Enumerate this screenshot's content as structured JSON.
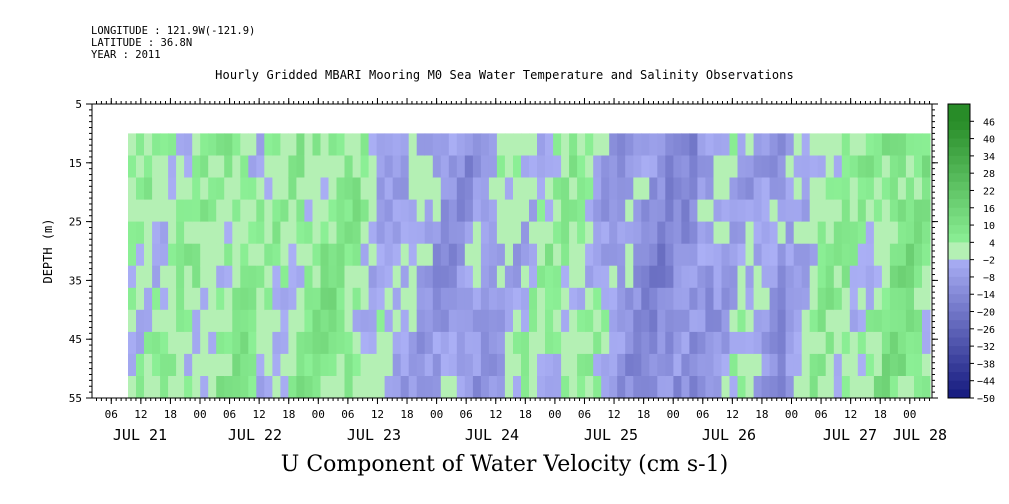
{
  "header": {
    "longitude": "LONGITUDE : 121.9W(-121.9)",
    "latitude": "LATITUDE : 36.8N",
    "year": "YEAR : 2011",
    "title": "Hourly Gridded MBARI Mooring M0 Sea Water Temperature and Salinity Observations"
  },
  "chart_data": {
    "type": "heatmap",
    "title": "Hourly Gridded MBARI Mooring M0 Sea Water Temperature and Salinity Observations",
    "xlabel": "U Component of Water Velocity (cm s-1)",
    "ylabel": "DEPTH (m)",
    "y_ticks": [
      5,
      15,
      25,
      35,
      45,
      55
    ],
    "y_range": [
      5,
      55
    ],
    "y_inverted": true,
    "data_depth_range": [
      10,
      55
    ],
    "x_hour_ticks": [
      "06",
      "12",
      "18",
      "00",
      "06",
      "12",
      "18",
      "00",
      "06",
      "12",
      "18",
      "00",
      "06",
      "12",
      "18",
      "00",
      "06",
      "12",
      "18",
      "00",
      "06",
      "12",
      "18",
      "00",
      "06",
      "12",
      "18",
      "00",
      "06",
      "12",
      "18",
      "00"
    ],
    "x_day_labels": [
      "JUL 21",
      "JUL 22",
      "JUL 23",
      "JUL 24",
      "JUL 25",
      "JUL 26",
      "JUL 27",
      "JUL 28"
    ],
    "colorbar_levels": [
      46,
      40,
      34,
      28,
      22,
      16,
      10,
      4,
      -2,
      -8,
      -14,
      -20,
      -26,
      -32,
      -38,
      -44,
      -50
    ],
    "colorbar_range": [
      -50,
      52
    ],
    "profile_sketch": [
      {
        "day_frac": 0.0,
        "u": 2
      },
      {
        "day_frac": 0.3,
        "u": 6
      },
      {
        "day_frac": 0.6,
        "u": 1
      },
      {
        "day_frac": 1.0,
        "u": 5
      },
      {
        "day_frac": 1.3,
        "u": 8
      },
      {
        "day_frac": 1.6,
        "u": -3
      },
      {
        "day_frac": 2.0,
        "u": -6
      },
      {
        "day_frac": 2.3,
        "u": -10
      },
      {
        "day_frac": 2.6,
        "u": -4
      },
      {
        "day_frac": 3.0,
        "u": 2
      },
      {
        "day_frac": 3.3,
        "u": 3
      },
      {
        "day_frac": 3.6,
        "u": -8
      },
      {
        "day_frac": 4.0,
        "u": -14
      },
      {
        "day_frac": 4.3,
        "u": -10
      },
      {
        "day_frac": 4.6,
        "u": -2
      },
      {
        "day_frac": 5.0,
        "u": -10
      },
      {
        "day_frac": 5.3,
        "u": 4
      },
      {
        "day_frac": 5.6,
        "u": 2
      },
      {
        "day_frac": 6.0,
        "u": 10
      },
      {
        "day_frac": 6.3,
        "u": 4
      },
      {
        "day_frac": 6.6,
        "u": 8
      },
      {
        "day_frac": 7.0,
        "u": 6
      }
    ]
  }
}
